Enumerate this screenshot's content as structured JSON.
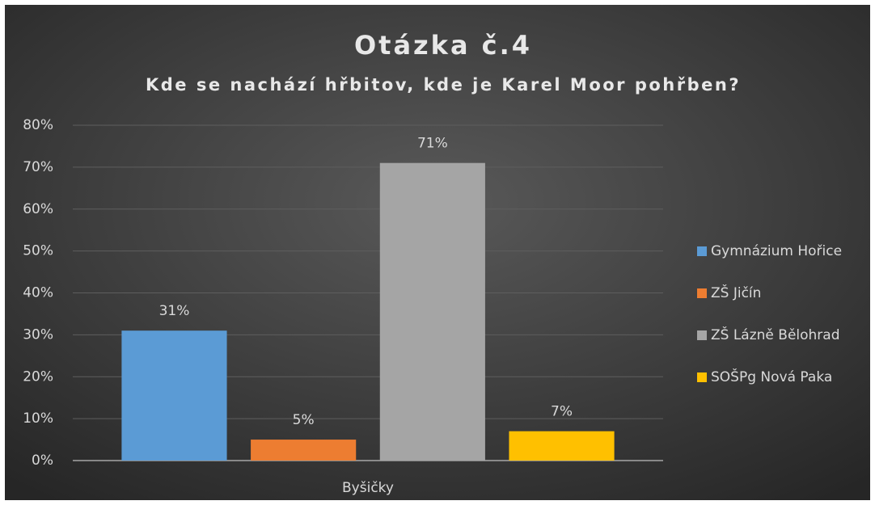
{
  "chart_data": {
    "type": "bar",
    "title": "Otázka č.4",
    "subtitle": "Kde se nachází hřbitov, kde je Karel Moor pohřben?",
    "categories": [
      "Byšičky"
    ],
    "series": [
      {
        "name": "Gymnázium Hořice",
        "color": "#5b9bd5",
        "values": [
          31
        ],
        "value_labels": [
          "31%"
        ]
      },
      {
        "name": "ZŠ Jičín",
        "color": "#ed7d31",
        "values": [
          5
        ],
        "value_labels": [
          "5%"
        ]
      },
      {
        "name": "ZŠ Lázně Bělohrad",
        "color": "#a5a5a5",
        "values": [
          71
        ],
        "value_labels": [
          "71%"
        ]
      },
      {
        "name": "SOŠPg Nová Paka",
        "color": "#ffc000",
        "values": [
          7
        ],
        "value_labels": [
          "7%"
        ]
      }
    ],
    "ylim": [
      0,
      80
    ],
    "yticks": [
      {
        "value": 0,
        "label": "0%"
      },
      {
        "value": 10,
        "label": "10%"
      },
      {
        "value": 20,
        "label": "20%"
      },
      {
        "value": 30,
        "label": "30%"
      },
      {
        "value": 40,
        "label": "40%"
      },
      {
        "value": 50,
        "label": "50%"
      },
      {
        "value": 60,
        "label": "60%"
      },
      {
        "value": 70,
        "label": "70%"
      },
      {
        "value": 80,
        "label": "80%"
      }
    ],
    "grid": true,
    "legend": "right"
  }
}
